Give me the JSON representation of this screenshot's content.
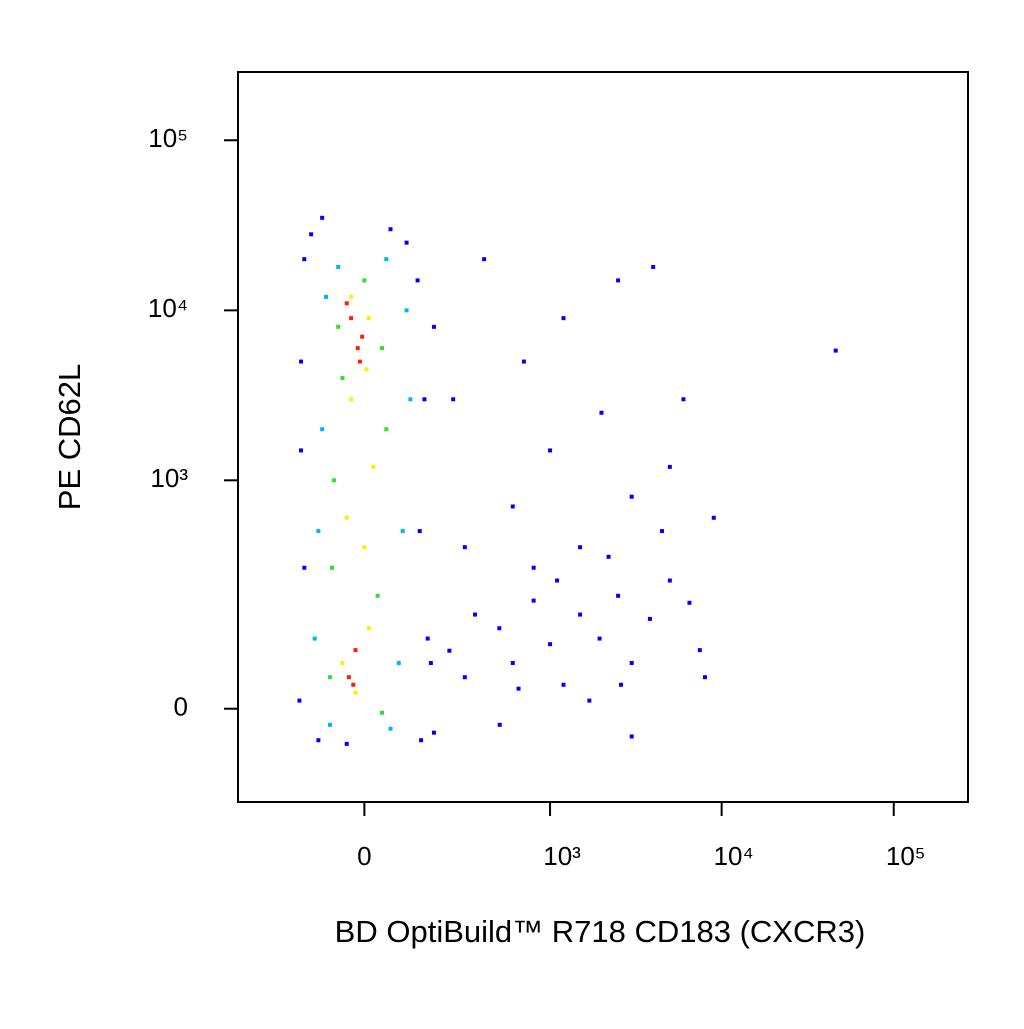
{
  "chart_data": {
    "type": "scatter",
    "x_label": "BD OptiBuild™ R718 CD183 (CXCR3)",
    "y_label": "PE CD62L",
    "xscale": "asinh",
    "yscale": "asinh",
    "xlim": [
      -440,
      270000
    ],
    "ylim": [
      -148,
      252000
    ],
    "xticks": [
      0,
      {
        "value": 1000,
        "label": "10³"
      },
      {
        "value": 10000,
        "label": "10⁴"
      },
      {
        "value": 100000,
        "label": "10⁵"
      }
    ],
    "yticks": [
      0,
      {
        "value": 1000,
        "label": "10³"
      },
      {
        "value": 10000,
        "label": "10⁴"
      },
      {
        "value": 100000,
        "label": "10⁵"
      }
    ],
    "grid": false,
    "series": [
      {
        "color": "#0000ff",
        "x": [
          235,
          300,
          497,
          600,
          800,
          1000,
          1200,
          1500,
          1950,
          2500,
          3000,
          3830,
          5000,
          7470,
          300,
          600,
          1000,
          1500,
          2000,
          3000,
          5000,
          700,
          1200,
          2500,
          4000,
          6000,
          9000,
          46000,
          400,
          250,
          800,
          2200,
          4500,
          350,
          1100,
          6500,
          8000,
          180,
          500,
          3000,
          1700,
          650,
          2600,
          -165,
          -160,
          -150,
          -130,
          -110,
          140,
          136,
          150,
          130,
          100,
          -150,
          -160,
          160,
          -40,
          60,
          -100,
          180,
          170
        ],
        "values": [
          79,
          40,
          120,
          60,
          186,
          90,
          30,
          150,
          100,
          200,
          60,
          140,
          250,
          80,
          400,
          700,
          1500,
          400,
          2500,
          800,
          1200,
          5000,
          9000,
          15000,
          18000,
          3000,
          600,
          5800,
          20000,
          3000,
          300,
          350,
          500,
          150,
          250,
          180,
          40,
          -30,
          -20,
          -35,
          10,
          25,
          30,
          10,
          5000,
          20000,
          28000,
          -40,
          -40,
          500,
          3000,
          15000,
          25000,
          300,
          1500,
          100,
          -45,
          30000,
          35000,
          8000,
          60
        ]
      },
      {
        "color": "#00b4ff",
        "x": [
          -120,
          -100,
          -90,
          100,
          90,
          80,
          -110,
          -60,
          50,
          -80,
          60,
          110
        ],
        "values": [
          100,
          2000,
          12000,
          10000,
          500,
          60,
          500,
          18000,
          20000,
          -20,
          -25,
          3000
        ]
      },
      {
        "color": "#33dd33",
        "x": [
          -80,
          -70,
          -60,
          40,
          30,
          50,
          -75,
          40,
          0,
          -50
        ],
        "values": [
          40,
          1000,
          8000,
          6000,
          200,
          2000,
          300,
          -5,
          15000,
          4000
        ]
      },
      {
        "color": "#ffee00",
        "x": [
          -50,
          -40,
          -30,
          10,
          10,
          20,
          -30,
          -20,
          0,
          5
        ],
        "values": [
          60,
          600,
          3000,
          9000,
          120,
          1200,
          12000,
          20,
          400,
          4500
        ]
      },
      {
        "color": "#ff2000",
        "x": [
          -35,
          -20,
          -15,
          -30,
          -10,
          -25,
          -5,
          -40
        ],
        "values": [
          40,
          80,
          6000,
          9000,
          5000,
          30,
          7000,
          11000
        ]
      }
    ]
  }
}
